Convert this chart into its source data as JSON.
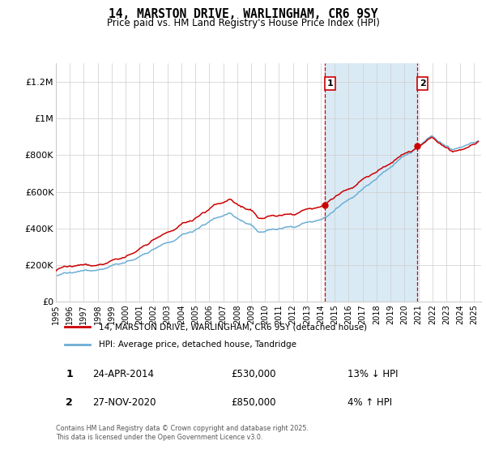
{
  "title": "14, MARSTON DRIVE, WARLINGHAM, CR6 9SY",
  "subtitle": "Price paid vs. HM Land Registry's House Price Index (HPI)",
  "ylabel_ticks": [
    "£0",
    "£200K",
    "£400K",
    "£600K",
    "£800K",
    "£1M",
    "£1.2M"
  ],
  "ytick_vals": [
    0,
    200000,
    400000,
    600000,
    800000,
    1000000,
    1200000
  ],
  "ylim": [
    0,
    1300000
  ],
  "xlim_start": 1995.0,
  "xlim_end": 2025.5,
  "sale1_date": 2014.31,
  "sale1_price": 530000,
  "sale1_label": "1",
  "sale1_hpi_diff": "13% ↓ HPI",
  "sale1_date_str": "24-APR-2014",
  "sale2_date": 2020.92,
  "sale2_price": 850000,
  "sale2_label": "2",
  "sale2_hpi_diff": "4% ↑ HPI",
  "sale2_date_str": "27-NOV-2020",
  "legend_line1": "14, MARSTON DRIVE, WARLINGHAM, CR6 9SY (detached house)",
  "legend_line2": "HPI: Average price, detached house, Tandridge",
  "footer": "Contains HM Land Registry data © Crown copyright and database right 2025.\nThis data is licensed under the Open Government Licence v3.0.",
  "hpi_color": "#6baed6",
  "price_color": "#cc0000",
  "shade_color": "#daeaf5",
  "vline_color": "#cc0000",
  "background_color": "#ffffff",
  "grid_color": "#cccccc"
}
